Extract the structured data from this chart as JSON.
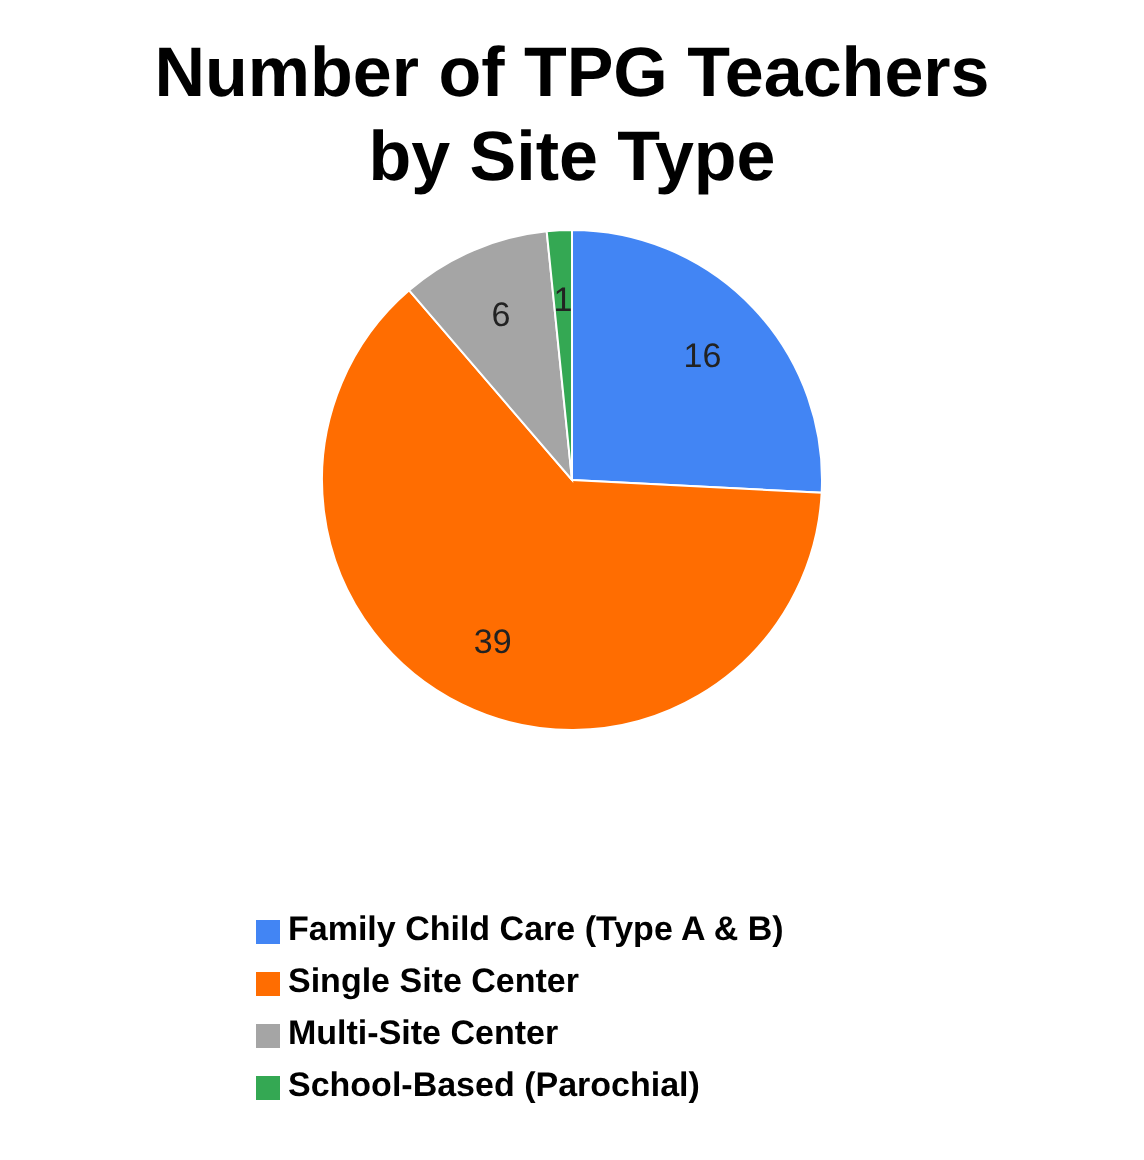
{
  "chart_data": {
    "type": "pie",
    "title": "Number of TPG Teachers by Site Type",
    "categories": [
      "Family Child Care (Type A & B)",
      "Single Site Center",
      "Multi-Site Center",
      "School-Based (Parochial)"
    ],
    "values": [
      16,
      39,
      6,
      1
    ],
    "colors": [
      "#4285f4",
      "#ff6d01",
      "#a5a5a5",
      "#34a853"
    ],
    "data_labels": true,
    "legend": "bottom"
  }
}
